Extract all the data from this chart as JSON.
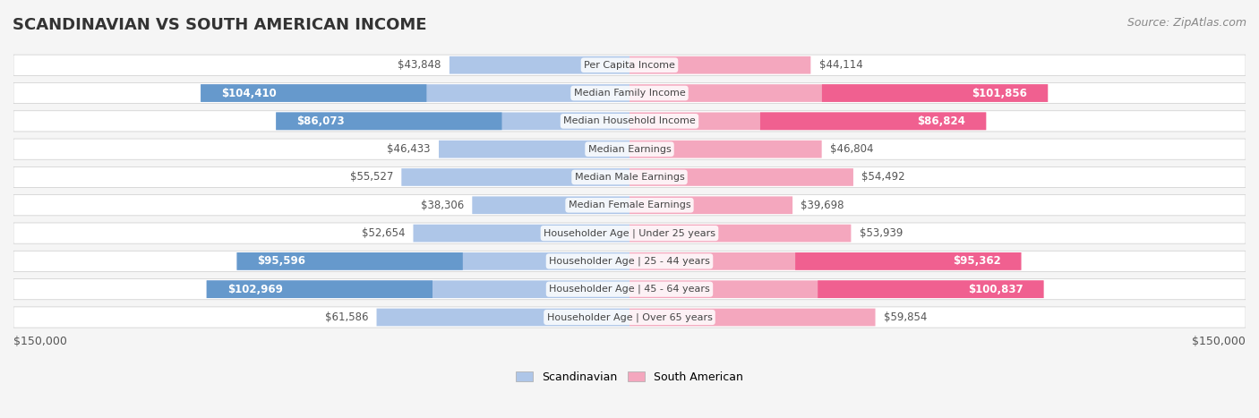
{
  "title": "SCANDINAVIAN VS SOUTH AMERICAN INCOME",
  "source": "Source: ZipAtlas.com",
  "categories": [
    "Per Capita Income",
    "Median Family Income",
    "Median Household Income",
    "Median Earnings",
    "Median Male Earnings",
    "Median Female Earnings",
    "Householder Age | Under 25 years",
    "Householder Age | 25 - 44 years",
    "Householder Age | 45 - 64 years",
    "Householder Age | Over 65 years"
  ],
  "scandinavian_values": [
    43848,
    104410,
    86073,
    46433,
    55527,
    38306,
    52654,
    95596,
    102969,
    61586
  ],
  "south_american_values": [
    44114,
    101856,
    86824,
    46804,
    54492,
    39698,
    53939,
    95362,
    100837,
    59854
  ],
  "scandinavian_labels": [
    "$43,848",
    "$104,410",
    "$86,073",
    "$46,433",
    "$55,527",
    "$38,306",
    "$52,654",
    "$95,596",
    "$102,969",
    "$61,586"
  ],
  "south_american_labels": [
    "$44,114",
    "$101,856",
    "$86,824",
    "$46,804",
    "$54,492",
    "$39,698",
    "$53,939",
    "$95,362",
    "$100,837",
    "$59,854"
  ],
  "scandinavian_color_light": "#aec6e8",
  "scandinavian_color_dark": "#6699cc",
  "south_american_color_light": "#f4a7be",
  "south_american_color_dark": "#f06090",
  "background_color": "#f5f5f5",
  "row_bg_color": "#ffffff",
  "max_value": 150000,
  "label_color_threshold": 80000,
  "title_fontsize": 13,
  "source_fontsize": 9,
  "bar_label_fontsize": 8.5,
  "category_fontsize": 8,
  "axis_label": "$150,000",
  "legend_scandinavian": "Scandinavian",
  "legend_south_american": "South American"
}
